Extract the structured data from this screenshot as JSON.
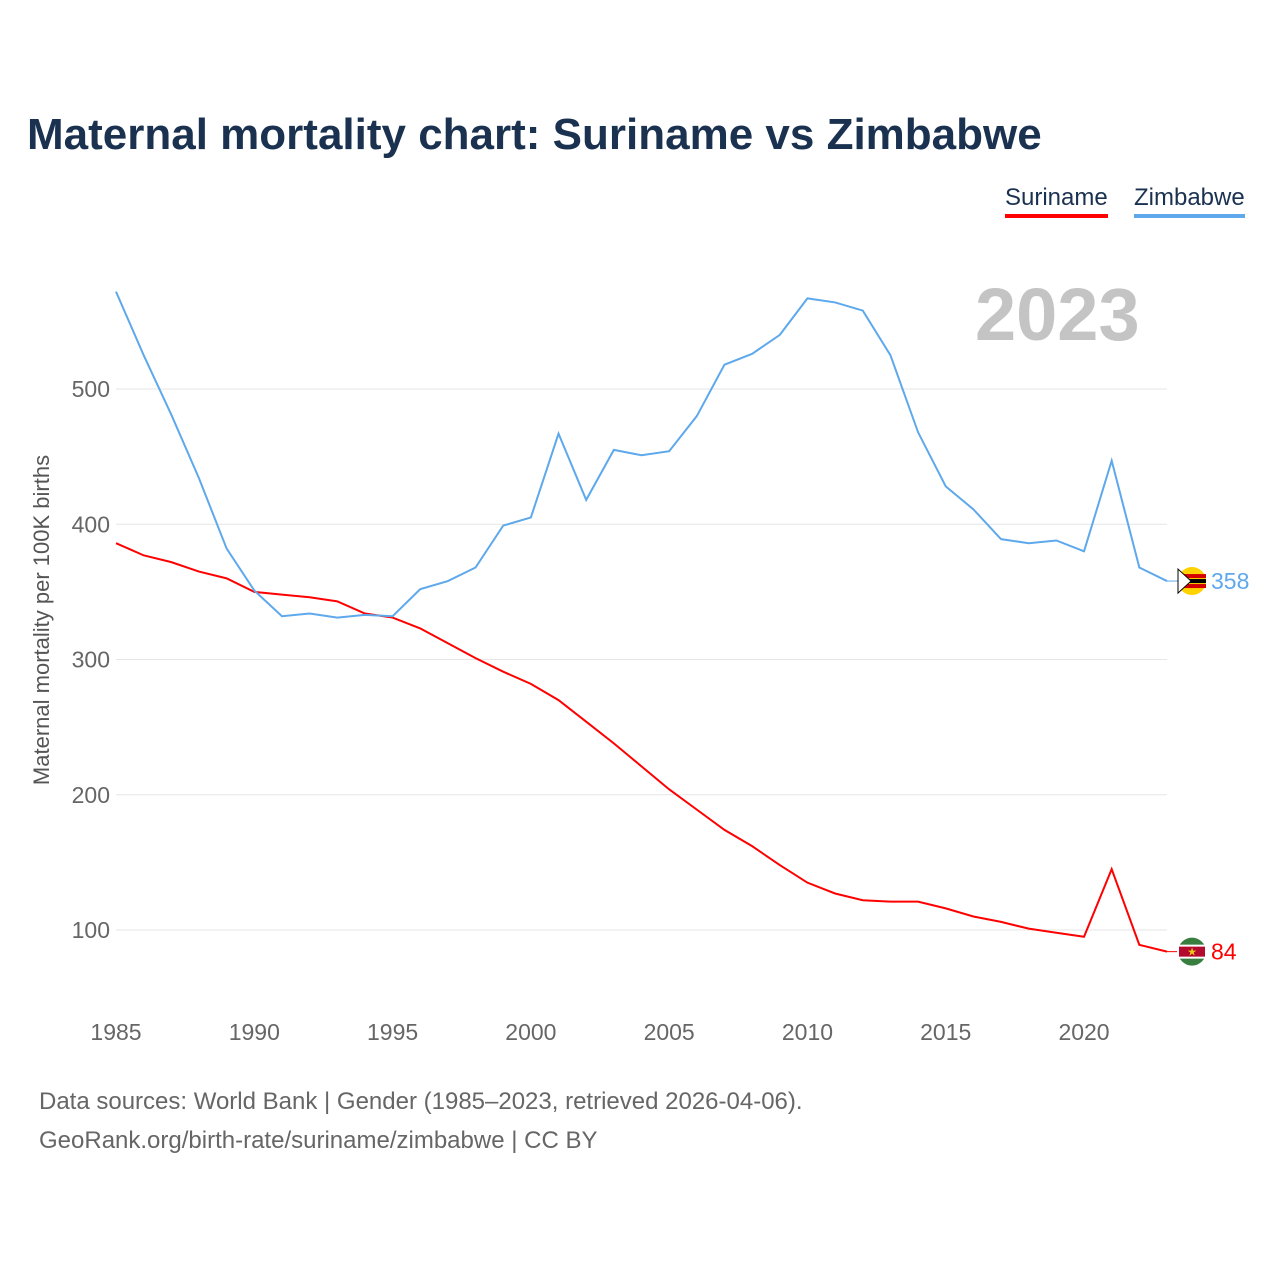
{
  "title": "Maternal mortality chart: Suriname vs Zimbabwe",
  "year_label": "2023",
  "sources": [
    "Data sources: World Bank | Gender (1985–2023, retrieved 2026-04-06).",
    "GeoRank.org/birth-rate/suriname/zimbabwe | CC BY"
  ],
  "chart_data": {
    "type": "line",
    "title": "Maternal mortality chart: Suriname vs Zimbabwe",
    "xlabel": "",
    "ylabel": "Maternal mortality per 100K births",
    "x": [
      1985,
      1986,
      1987,
      1988,
      1989,
      1990,
      1991,
      1992,
      1993,
      1994,
      1995,
      1996,
      1997,
      1998,
      1999,
      2000,
      2001,
      2002,
      2003,
      2004,
      2005,
      2006,
      2007,
      2008,
      2009,
      2010,
      2011,
      2012,
      2013,
      2014,
      2015,
      2016,
      2017,
      2018,
      2019,
      2020,
      2021,
      2022,
      2023
    ],
    "xticks": [
      "1985",
      "1990",
      "1995",
      "2000",
      "2005",
      "2010",
      "2015",
      "2020"
    ],
    "yticks": [
      "100",
      "200",
      "300",
      "400",
      "500"
    ],
    "xlim": [
      1985,
      2023
    ],
    "ylim": [
      60,
      580
    ],
    "grid": true,
    "legend": "top-right",
    "series": [
      {
        "name": "Suriname",
        "color": "#ff0000",
        "end_label": "84",
        "values": [
          386,
          377,
          372,
          365,
          360,
          350,
          348,
          346,
          343,
          334,
          331,
          323,
          312,
          301,
          291,
          282,
          270,
          254,
          238,
          221,
          204,
          189,
          174,
          162,
          148,
          135,
          127,
          122,
          121,
          121,
          116,
          110,
          106,
          101,
          98,
          95,
          145,
          89,
          84
        ]
      },
      {
        "name": "Zimbabwe",
        "color": "#5ea8ec",
        "end_label": "358",
        "values": [
          572,
          525,
          481,
          434,
          382,
          351,
          332,
          334,
          331,
          333,
          332,
          352,
          358,
          368,
          399,
          405,
          467,
          418,
          455,
          451,
          454,
          480,
          518,
          526,
          540,
          567,
          564,
          558,
          525,
          468,
          428,
          411,
          389,
          386,
          388,
          380,
          447,
          368,
          358
        ]
      }
    ]
  }
}
